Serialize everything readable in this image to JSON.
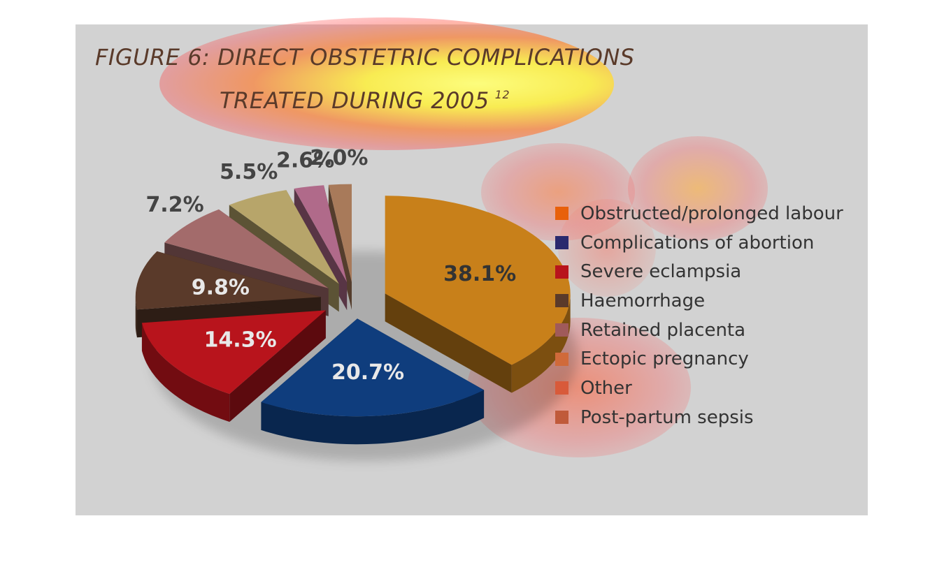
{
  "chart_data": {
    "type": "pie",
    "title": "FIGURE 6: DIRECT OBSTETRIC COMPLICATIONS",
    "subtitle": "TREATED DURING 2005",
    "title_superscript": "12",
    "legend_position": "right",
    "slices": [
      {
        "label": "Obstructed/prolonged labour",
        "value": 38.1,
        "display": "38.1%",
        "color": "#c8801a",
        "legend_color": "#e8600a",
        "label_color": "#333333"
      },
      {
        "label": "Complications of abortion",
        "value": 20.7,
        "display": "20.7%",
        "color": "#0f3d7d",
        "legend_color": "#2a2a6e",
        "label_color": "#e8e8e8"
      },
      {
        "label": "Severe eclampsia",
        "value": 14.3,
        "display": "14.3%",
        "color": "#b8141c",
        "legend_color": "#b8141c",
        "label_color": "#e8e8e8"
      },
      {
        "label": "Haemorrhage",
        "value": 9.8,
        "display": "9.8%",
        "color": "#5a3a2a",
        "legend_color": "#5a3a2a",
        "label_color": "#e8e8e8"
      },
      {
        "label": "Retained placenta",
        "value": 7.2,
        "display": "7.2%",
        "color": "#a36b6b",
        "legend_color": "#a05a5a",
        "label_color": "#444444"
      },
      {
        "label": "Ectopic pregnancy",
        "value": 5.5,
        "display": "5.5%",
        "color": "#b7a56a",
        "legend_color": "#d06a3a",
        "label_color": "#444444"
      },
      {
        "label": "Other",
        "value": 2.6,
        "display": "2.6%",
        "color": "#b06a8a",
        "legend_color": "#d85a3a",
        "label_color": "#444444"
      },
      {
        "label": "Post-partum sepsis",
        "value": 2.0,
        "display": "2.0%",
        "color": "#a87a5a",
        "legend_color": "#c05a3a",
        "label_color": "#444444"
      }
    ]
  }
}
